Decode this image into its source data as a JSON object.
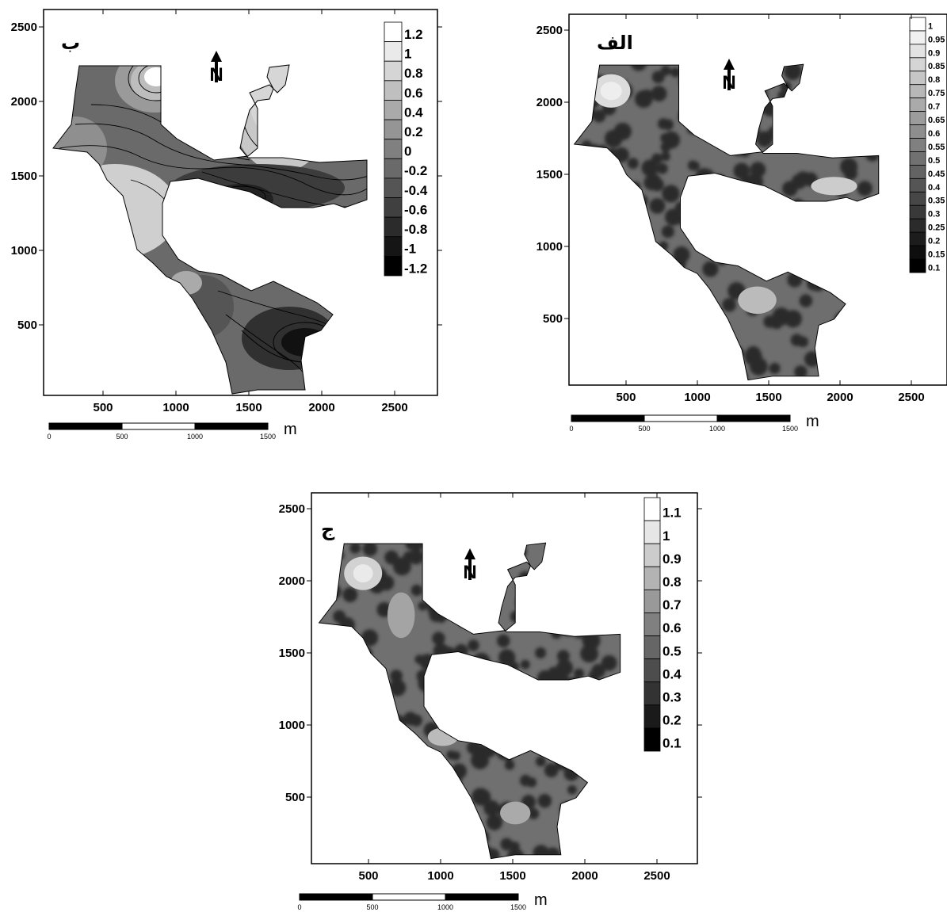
{
  "maps": [
    {
      "id": "b",
      "title": "ب",
      "x_ticks": [
        "500",
        "1000",
        "1500",
        "2000",
        "2500"
      ],
      "y_ticks": [
        "2500",
        "2000",
        "1500",
        "1000",
        "500"
      ],
      "legend": {
        "labels": [
          "1.2",
          "1",
          "0.8",
          "0.6",
          "0.4",
          "0.2",
          "0",
          "-0.2",
          "-0.4",
          "-0.6",
          "-0.8",
          "-1",
          "-1.2"
        ],
        "min": -1.2,
        "max": 1.2
      },
      "scale_bar": {
        "labels": [
          "0",
          "500",
          "1000",
          "1500"
        ],
        "unit": "m"
      }
    },
    {
      "id": "alef",
      "title": "الف",
      "x_ticks": [
        "500",
        "1000",
        "1500",
        "2000",
        "2500"
      ],
      "y_ticks": [
        "2500",
        "2000",
        "1500",
        "1000",
        "500"
      ],
      "legend": {
        "labels": [
          "1",
          "0.95",
          "0.9",
          "0.85",
          "0.8",
          "0.75",
          "0.7",
          "0.65",
          "0.6",
          "0.55",
          "0.5",
          "0.45",
          "0.4",
          "0.35",
          "0.3",
          "0.25",
          "0.2",
          "0.15",
          "0.1"
        ],
        "min": 0.1,
        "max": 1.0
      },
      "scale_bar": {
        "labels": [
          "0",
          "500",
          "1000",
          "1500"
        ],
        "unit": "m"
      }
    },
    {
      "id": "jim",
      "title": "ج",
      "x_ticks": [
        "500",
        "1000",
        "1500",
        "2000",
        "2500"
      ],
      "y_ticks": [
        "2500",
        "2000",
        "1500",
        "1000",
        "500"
      ],
      "legend": {
        "labels": [
          "1.1",
          "1",
          "0.9",
          "0.8",
          "0.7",
          "0.6",
          "0.5",
          "0.4",
          "0.3",
          "0.2",
          "0.1"
        ],
        "min": 0.1,
        "max": 1.1
      },
      "scale_bar": {
        "labels": [
          "0",
          "500",
          "1000",
          "1500"
        ],
        "unit": "m"
      }
    }
  ],
  "north_arrow_label": "N",
  "colors": {
    "frame": "#000000",
    "background": "#ffffff",
    "region_base": "#7a7a7a"
  },
  "icons": {
    "north": "north-arrow-icon"
  }
}
